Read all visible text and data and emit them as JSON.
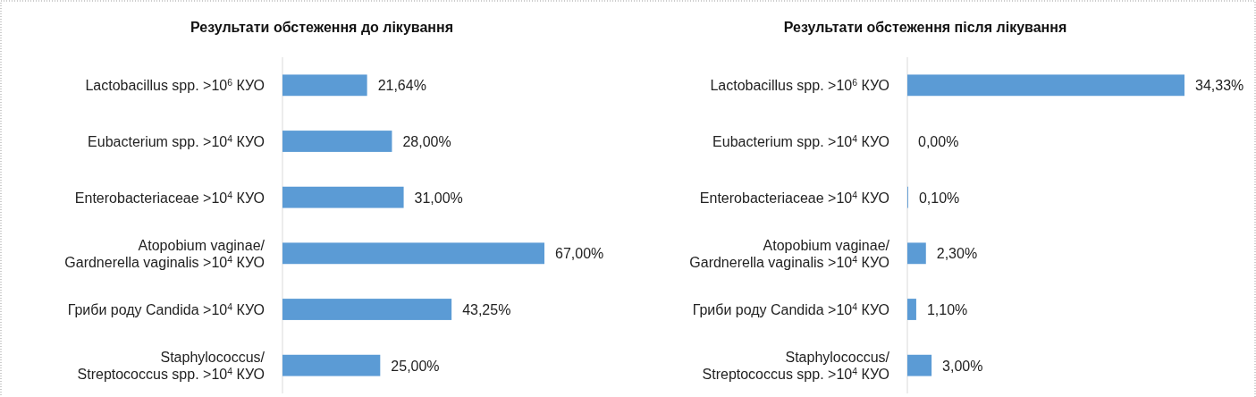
{
  "chart_data": [
    {
      "type": "bar",
      "orientation": "horizontal",
      "title": "Результати обстеження до лікування",
      "categories": [
        "Lactobacillus spp. >10$^{6}$ КУО",
        "Eubacterium spp. >10$^{4}$ КУО",
        "Enterobacteriaceae >10$^{4}$ КУО",
        "Atopobium vaginae/\nGardnerella vaginalis >10$^{4}$ КУО",
        "Гриби роду Candida >10$^{4}$ КУО",
        "Staphylococcus/\nStreptococcus spp. >10$^{4}$ КУО"
      ],
      "values": [
        21.64,
        28.0,
        31.0,
        67.0,
        43.25,
        25.0
      ],
      "value_labels": [
        "21,64%",
        "28,00%",
        "31,00%",
        "67,00%",
        "43,25%",
        "25,00%"
      ],
      "color": "#5b9bd5"
    },
    {
      "type": "bar",
      "orientation": "horizontal",
      "title": "Результати обстеження після лікування",
      "categories": [
        "Lactobacillus spp. >10$^{6}$ КУО",
        "Eubacterium spp. >10$^{4}$ КУО",
        "Enterobacteriaceae >10$^{4}$ КУО",
        "Atopobium vaginae/\nGardnerella vaginalis >10$^{4}$ КУО",
        "Гриби роду Candida >10$^{4}$ КУО",
        "Staphylococcus/\nStreptococcus spp. >10$^{4}$ КУО"
      ],
      "values": [
        34.33,
        0.0,
        0.1,
        2.3,
        1.1,
        3.0
      ],
      "value_labels": [
        "34,33%",
        "0,00%",
        "0,10%",
        "2,30%",
        "1,10%",
        "3,00%"
      ],
      "color": "#5b9bd5"
    }
  ]
}
